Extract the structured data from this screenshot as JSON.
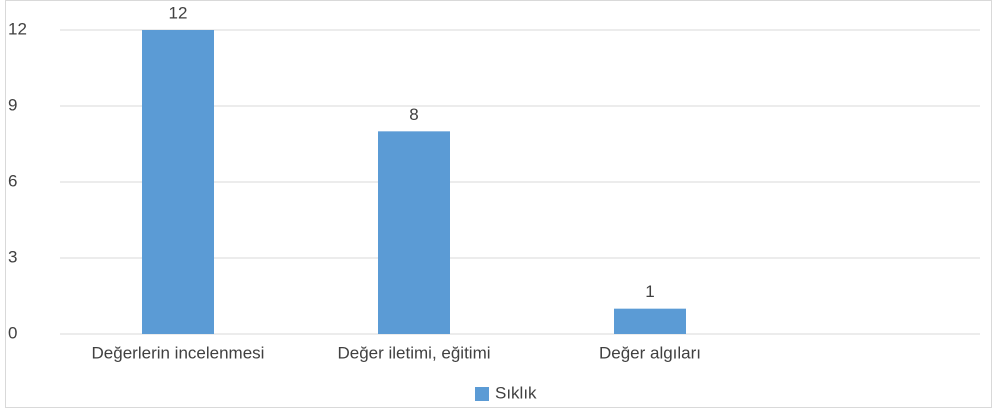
{
  "chart_data": {
    "type": "bar",
    "categories": [
      "Değerlerin incelenmesi",
      "Değer iletimi, eğitimi",
      "Değer algıları"
    ],
    "series": [
      {
        "name": "Sıklık",
        "color": "#5b9bd5",
        "values": [
          12,
          8,
          1
        ]
      }
    ],
    "ylim": [
      0,
      12
    ],
    "yticks": [
      0,
      3,
      6,
      9,
      12
    ],
    "grid": true,
    "legend": "bottom"
  }
}
